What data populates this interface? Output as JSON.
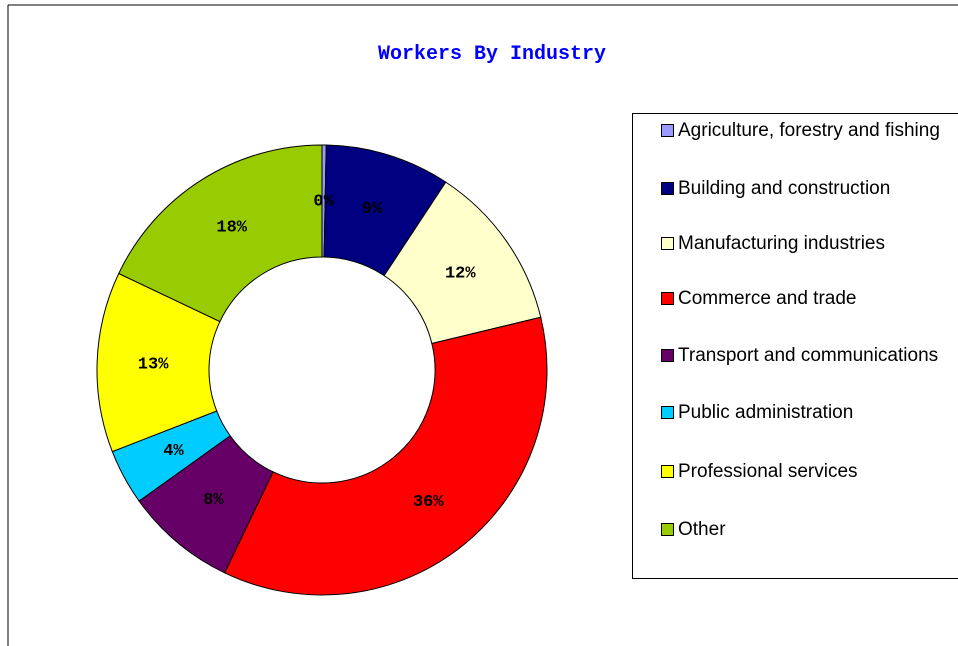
{
  "chart_data": {
    "type": "donut",
    "title": "Workers By Industry",
    "categories": [
      "Agriculture, forestry and fishing",
      "Building and construction",
      "Manufacturing industries",
      "Commerce and trade",
      "Transport and communications",
      "Public administration",
      "Professional services",
      "Other"
    ],
    "values": [
      0.3,
      9,
      12,
      36,
      8,
      4,
      13,
      18
    ],
    "value_labels": [
      "0%",
      "9%",
      "12%",
      "36%",
      "8%",
      "4%",
      "13%",
      "18%"
    ],
    "colors": [
      "#9999ff",
      "#000080",
      "#ffffcc",
      "#ff0000",
      "#660066",
      "#00ccff",
      "#ffff00",
      "#99cc00"
    ],
    "legend": "right"
  }
}
